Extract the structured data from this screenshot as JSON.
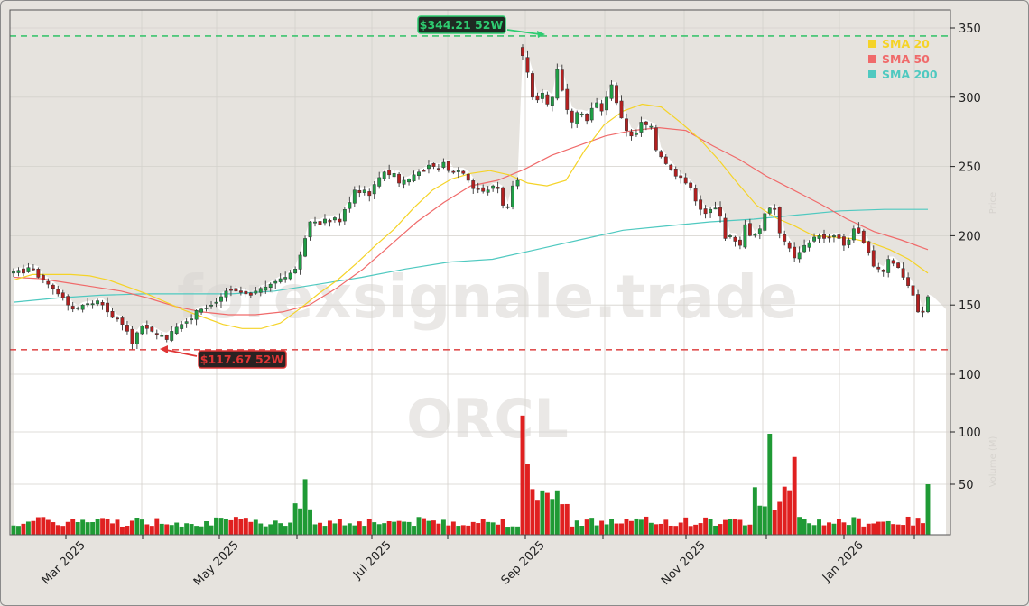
{
  "chart_data": {
    "type": "candlestick",
    "ticker": "ORCL",
    "watermark": "forexsignale.trade",
    "x_tick_labels": [
      "Mar 2025",
      "May 2025",
      "Jul 2025",
      "Sep 2025",
      "Nov 2025",
      "Jan 2026"
    ],
    "price_axis": {
      "ticks": [
        100,
        150,
        200,
        250,
        300,
        350
      ],
      "range": [
        95,
        362
      ],
      "label": "Price"
    },
    "volume_axis": {
      "ticks": [
        50,
        100
      ],
      "range": [
        0,
        135
      ],
      "label": "Volume (M)"
    },
    "legend": [
      {
        "name": "SMA 20",
        "color": "#f5d327"
      },
      {
        "name": "SMA 50",
        "color": "#f06a6a"
      },
      {
        "name": "SMA 200",
        "color": "#4fc9c0"
      }
    ],
    "annotations": {
      "high": {
        "label": "$344.21 52W",
        "value": 344.21,
        "color": "#2ecc71"
      },
      "low": {
        "label": "$117.67 52W",
        "value": 117.67,
        "color": "#e03535"
      }
    },
    "close_series": [
      174,
      175,
      173,
      177,
      176,
      170,
      168,
      165,
      162,
      158,
      155,
      150,
      147,
      148,
      150,
      151,
      151,
      153,
      150,
      145,
      141,
      140,
      136,
      131,
      122,
      130,
      135,
      133,
      131,
      129,
      128,
      125,
      131,
      134,
      136,
      138,
      140,
      146,
      147,
      148,
      150,
      152,
      156,
      160,
      161,
      160,
      159,
      158,
      157,
      160,
      162,
      163,
      165,
      167,
      169,
      170,
      173,
      176,
      186,
      198,
      210,
      210,
      208,
      212,
      210,
      213,
      210,
      219,
      224,
      233,
      231,
      233,
      229,
      237,
      242,
      246,
      244,
      245,
      238,
      240,
      241,
      244,
      246,
      247,
      251,
      250,
      248,
      253,
      247,
      246,
      247,
      245,
      240,
      234,
      234,
      232,
      233,
      236,
      234,
      222,
      221,
      236,
      240,
      330,
      318,
      300,
      298,
      303,
      295,
      300,
      320,
      305,
      291,
      282,
      289,
      288,
      283,
      292,
      296,
      290,
      300,
      309,
      296,
      285,
      276,
      272,
      274,
      282,
      280,
      279,
      262,
      257,
      252,
      248,
      243,
      242,
      238,
      235,
      225,
      219,
      216,
      219,
      220,
      214,
      198,
      200,
      196,
      193,
      208,
      200,
      201,
      205,
      216,
      220,
      219,
      202,
      196,
      191,
      184,
      188,
      193,
      195,
      199,
      200,
      198,
      199,
      200,
      198,
      193,
      197,
      205,
      202,
      195,
      188,
      178,
      176,
      174,
      183,
      180,
      177,
      170,
      164,
      157,
      145,
      145,
      156
    ],
    "sma20_series_approx": [
      168,
      172,
      172,
      172,
      171,
      168,
      163,
      158,
      152,
      146,
      141,
      136,
      133,
      133,
      137,
      147,
      158,
      168,
      180,
      193,
      205,
      220,
      233,
      241,
      245,
      247,
      244,
      238,
      236,
      240,
      262,
      280,
      290,
      295,
      293,
      282,
      270,
      255,
      238,
      222,
      213,
      207,
      200,
      199,
      198,
      195,
      190,
      183,
      173
    ],
    "sma50_series_approx": [
      170,
      169,
      166,
      163,
      160,
      155,
      149,
      145,
      143,
      143,
      145,
      150,
      162,
      176,
      193,
      210,
      224,
      236,
      240,
      248,
      258,
      265,
      272,
      276,
      278,
      276,
      265,
      255,
      243,
      233,
      223,
      212,
      203,
      197,
      190
    ],
    "sma200_series_approx": [
      152,
      155,
      157,
      158,
      158,
      158,
      160,
      165,
      170,
      176,
      181,
      183,
      190,
      197,
      204,
      207,
      210,
      212,
      215,
      218,
      219,
      219
    ],
    "volume_peaks_m": {
      "sep_2025_gap": 118,
      "dec_2025_a": 100,
      "dec_2025_b": 77
    }
  },
  "legend_labels": {
    "sma20": "SMA 20",
    "sma50": "SMA 50",
    "sma200": "SMA 200"
  }
}
